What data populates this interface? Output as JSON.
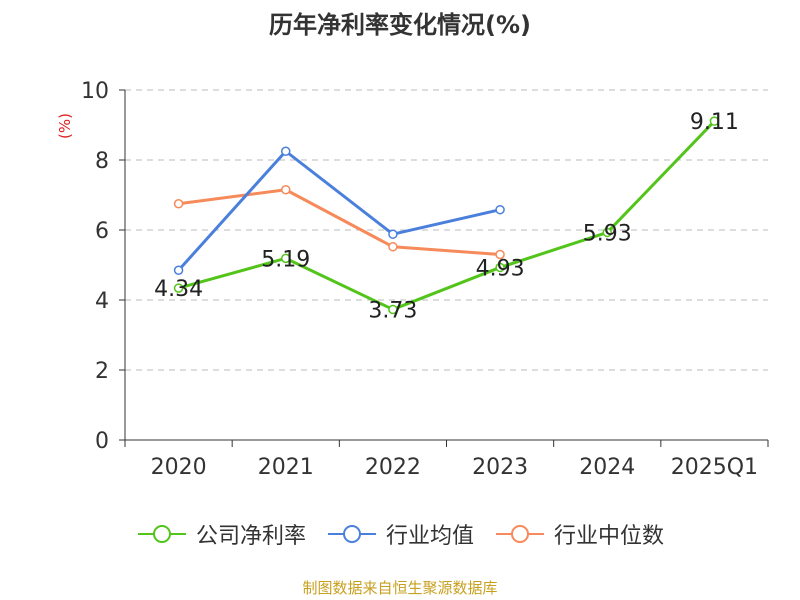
{
  "title": "历年净利率变化情况(%)",
  "source": "制图数据来自恒生聚源数据库",
  "chart_data": {
    "type": "line",
    "title": "历年净利率变化情况(%)",
    "ylabel": "(%)",
    "ylim": [
      0,
      10
    ],
    "yticks": [
      0,
      2,
      4,
      6,
      8,
      10
    ],
    "grid": true,
    "legend_position": "bottom",
    "categories": [
      "2020",
      "2021",
      "2022",
      "2023",
      "2024",
      "2025Q1"
    ],
    "series": [
      {
        "name": "公司净利率",
        "color": "#52c41a",
        "values": [
          4.34,
          5.19,
          3.73,
          4.93,
          5.93,
          9.11
        ],
        "labels": [
          "4.34",
          "5.19",
          "3.73",
          "4.93",
          "5.93",
          "9.11"
        ]
      },
      {
        "name": "行业均值",
        "color": "#4a7fdc",
        "values": [
          4.85,
          8.25,
          5.88,
          6.58,
          null,
          null
        ],
        "labels": []
      },
      {
        "name": "行业中位数",
        "color": "#f78a5a",
        "values": [
          6.75,
          7.15,
          5.52,
          5.3,
          null,
          null
        ],
        "labels": []
      }
    ]
  }
}
